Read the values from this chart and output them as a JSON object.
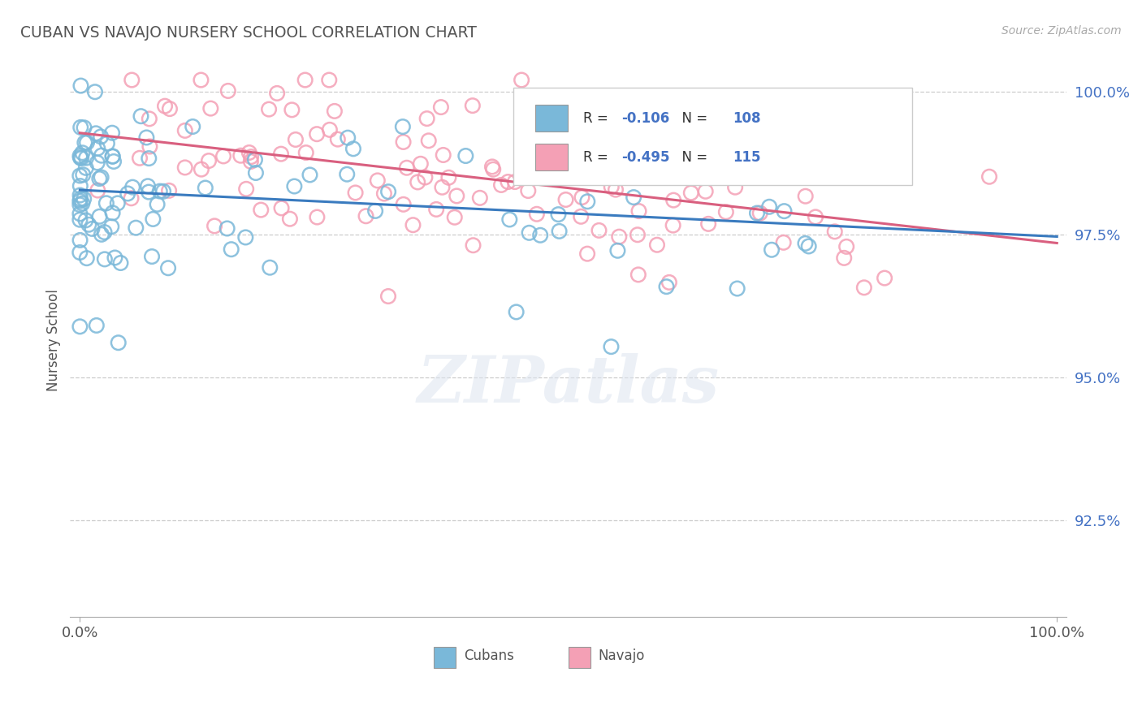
{
  "title": "CUBAN VS NAVAJO NURSERY SCHOOL CORRELATION CHART",
  "source": "Source: ZipAtlas.com",
  "ylabel": "Nursery School",
  "watermark": "ZIPatlas",
  "legend": {
    "cuban_label": "Cubans",
    "navajo_label": "Navajo",
    "cuban_R": -0.106,
    "cuban_N": 108,
    "navajo_R": -0.495,
    "navajo_N": 115
  },
  "cuban_color": "#7ab8d9",
  "navajo_color": "#f4a0b5",
  "cuban_line_color": "#3a7bbf",
  "navajo_line_color": "#d95f7f",
  "ytick_color": "#4472c4",
  "ylim": [
    0.908,
    1.005
  ],
  "xlim": [
    -0.01,
    1.01
  ],
  "yticks": [
    0.925,
    0.95,
    0.975,
    1.0
  ],
  "ytick_labels": [
    "92.5%",
    "95.0%",
    "97.5%",
    "100.0%"
  ],
  "background_color": "#ffffff",
  "grid_color": "#cccccc",
  "title_color": "#555555"
}
